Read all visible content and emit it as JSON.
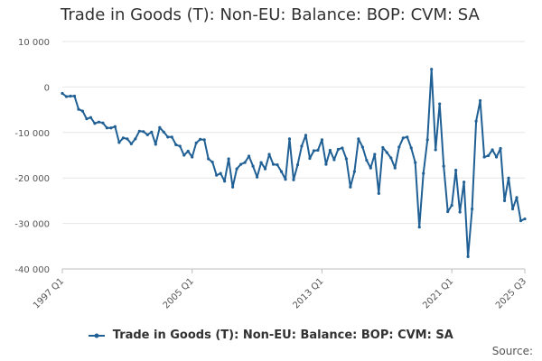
{
  "header": {
    "title": "Trade in Goods (T): Non-EU: Balance: BOP: CVM: SA"
  },
  "footer": {
    "source_label": "Source:"
  },
  "chart_data": {
    "type": "line",
    "title": "Trade in Goods (T): Non-EU: Balance: BOP: CVM: SA",
    "xlabel": "",
    "ylabel": "",
    "ylim": [
      -40000,
      10000
    ],
    "yticks": [
      10000,
      0,
      -10000,
      -20000,
      -30000,
      -40000
    ],
    "ytick_labels": [
      "10 000",
      "0",
      "-10 000",
      "-20 000",
      "-30 000",
      "-40 000"
    ],
    "xticks": [
      "1997 Q1",
      "2005 Q1",
      "2013 Q1",
      "2021 Q1",
      "2025 Q3"
    ],
    "grid": "horizontal",
    "legend": "bottom-center",
    "color": "#206095",
    "series": [
      {
        "name": "Trade in Goods (T): Non-EU: Balance: BOP: CVM: SA",
        "start_period": "1997 Q1",
        "frequency": "quarterly",
        "values": [
          -1400,
          -2100,
          -2000,
          -2000,
          -4900,
          -5300,
          -7000,
          -6700,
          -8000,
          -7700,
          -7900,
          -9000,
          -9000,
          -8700,
          -12200,
          -11200,
          -11400,
          -12500,
          -11400,
          -9700,
          -9800,
          -10500,
          -9900,
          -12600,
          -8900,
          -9900,
          -11000,
          -11000,
          -12700,
          -13000,
          -15000,
          -14100,
          -15400,
          -12300,
          -11500,
          -11600,
          -15800,
          -16500,
          -19400,
          -19000,
          -20700,
          -15800,
          -22000,
          -18000,
          -17000,
          -16600,
          -15200,
          -17400,
          -19800,
          -16600,
          -18000,
          -14800,
          -17000,
          -17100,
          -18600,
          -20300,
          -11400,
          -20400,
          -17100,
          -13000,
          -10600,
          -15700,
          -14000,
          -13900,
          -11600,
          -17000,
          -13900,
          -16000,
          -13700,
          -13400,
          -15800,
          -22000,
          -18600,
          -11400,
          -13200,
          -16100,
          -17800,
          -14800,
          -23400,
          -13300,
          -14400,
          -15600,
          -17800,
          -13200,
          -11200,
          -11000,
          -13400,
          -16600,
          -30800,
          -19000,
          -11600,
          3900,
          -13800,
          -3700,
          -17400,
          -27400,
          -26000,
          -18300,
          -27500,
          -20900,
          -37300,
          -26800,
          -7500,
          -3000,
          -15400,
          -15100,
          -13800,
          -15400,
          -13500,
          -25000,
          -20000,
          -26800,
          -24300,
          -29400,
          -29000
        ]
      }
    ]
  }
}
